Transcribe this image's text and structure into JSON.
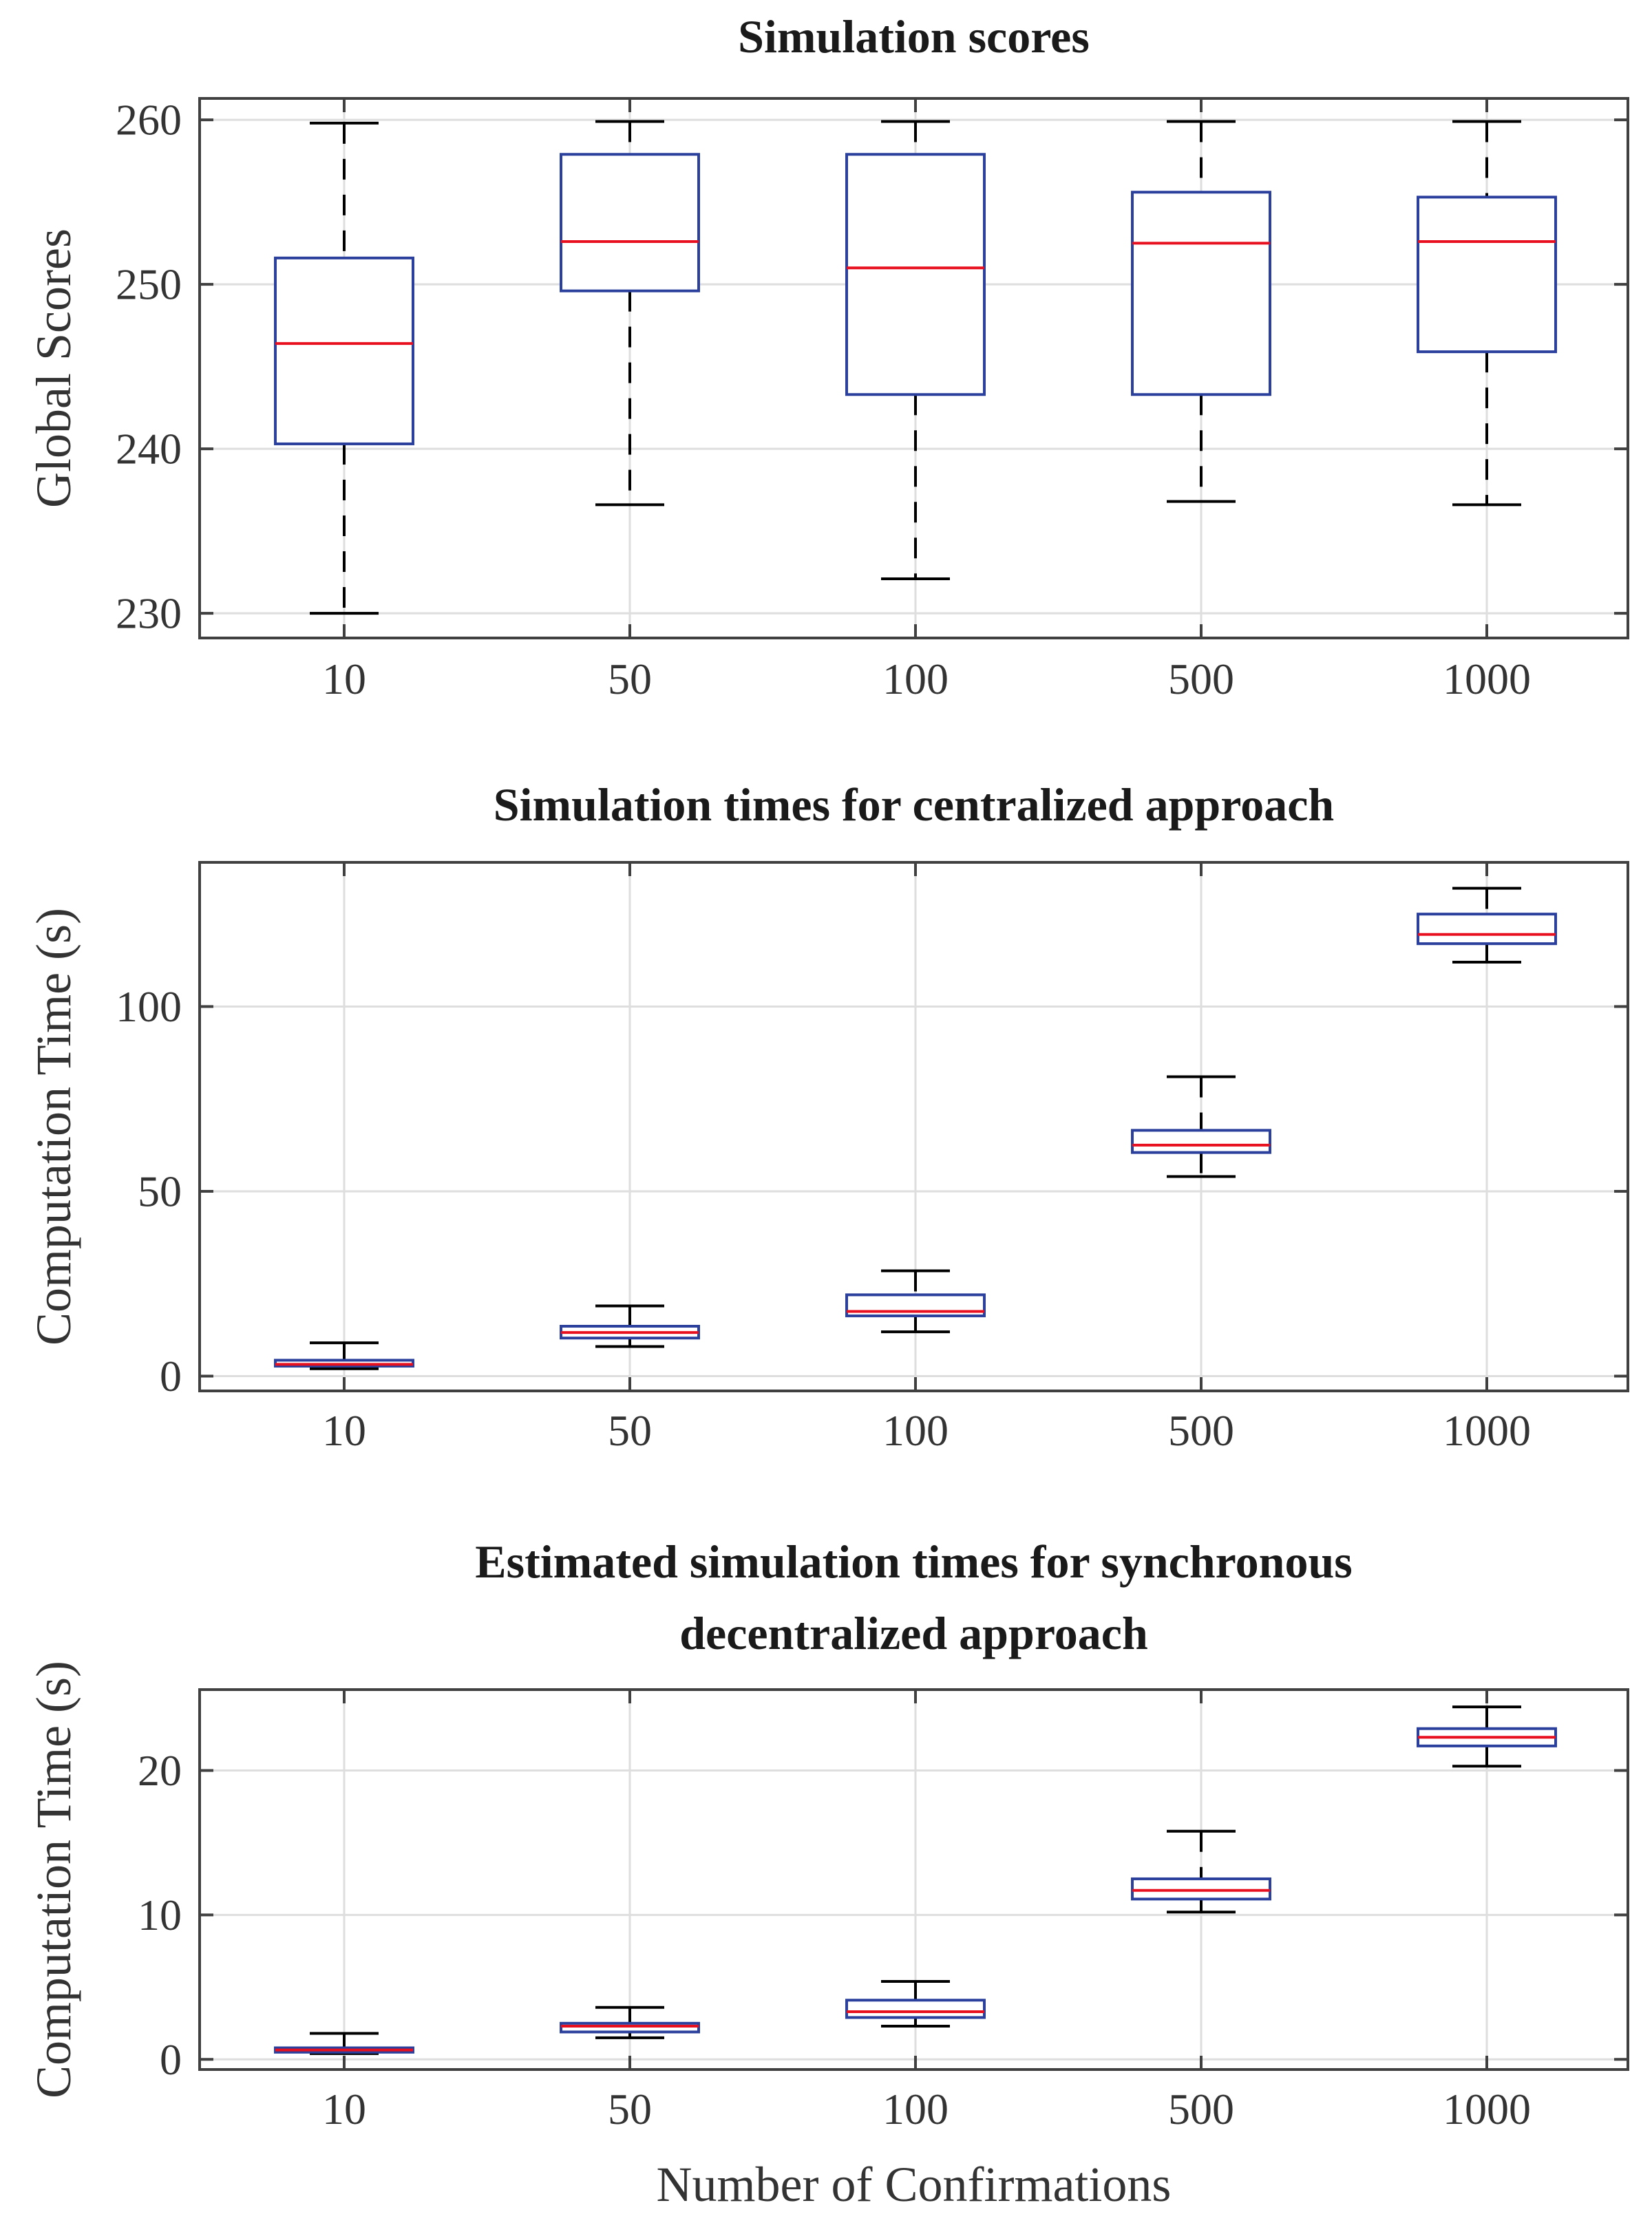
{
  "chart_data": [
    {
      "type": "boxplot",
      "title": [
        "Simulation scores"
      ],
      "xlabel": "",
      "ylabel": "Global Scores",
      "categories": [
        "10",
        "50",
        "100",
        "500",
        "1000"
      ],
      "ylim": [
        228.5,
        261.3
      ],
      "yticks": [
        230,
        240,
        250,
        260
      ],
      "grid": true,
      "boxes": [
        {
          "min": 230,
          "q1": 240.3,
          "median": 246.4,
          "q3": 251.6,
          "max": 259.8
        },
        {
          "min": 236.6,
          "q1": 249.6,
          "median": 252.6,
          "q3": 257.9,
          "max": 259.9
        },
        {
          "min": 232.1,
          "q1": 243.3,
          "median": 251.0,
          "q3": 257.9,
          "max": 259.9
        },
        {
          "min": 236.8,
          "q1": 243.3,
          "median": 252.5,
          "q3": 255.6,
          "max": 259.9
        },
        {
          "min": 236.6,
          "q1": 245.9,
          "median": 252.6,
          "q3": 255.3,
          "max": 259.9
        }
      ]
    },
    {
      "type": "boxplot",
      "title": [
        "Simulation times for centralized approach"
      ],
      "xlabel": "",
      "ylabel": "Computation Time (s)",
      "categories": [
        "10",
        "50",
        "100",
        "500",
        "1000"
      ],
      "ylim": [
        -4,
        139
      ],
      "yticks": [
        0,
        50,
        100
      ],
      "grid": true,
      "boxes": [
        {
          "min": 2,
          "q1": 2.7,
          "median": 3.2,
          "q3": 4.3,
          "max": 9
        },
        {
          "min": 8,
          "q1": 10.3,
          "median": 11.8,
          "q3": 13.5,
          "max": 19
        },
        {
          "min": 12,
          "q1": 16.3,
          "median": 17.5,
          "q3": 22,
          "max": 28.5
        },
        {
          "min": 54,
          "q1": 60.5,
          "median": 62.5,
          "q3": 66.5,
          "max": 81
        },
        {
          "min": 112,
          "q1": 117,
          "median": 119.5,
          "q3": 125,
          "max": 132
        }
      ]
    },
    {
      "type": "boxplot",
      "title": [
        "Estimated simulation times for synchronous",
        "decentralized approach"
      ],
      "xlabel": "Number of Confirmations",
      "ylabel": "Computation Time (s)",
      "categories": [
        "10",
        "50",
        "100",
        "500",
        "1000"
      ],
      "ylim": [
        -0.7,
        25.6
      ],
      "yticks": [
        0,
        10,
        20
      ],
      "grid": true,
      "boxes": [
        {
          "min": 0.4,
          "q1": 0.5,
          "median": 0.65,
          "q3": 0.8,
          "max": 1.8
        },
        {
          "min": 1.5,
          "q1": 1.9,
          "median": 2.3,
          "q3": 2.5,
          "max": 3.6
        },
        {
          "min": 2.3,
          "q1": 2.9,
          "median": 3.3,
          "q3": 4.1,
          "max": 5.4
        },
        {
          "min": 10.2,
          "q1": 11.1,
          "median": 11.7,
          "q3": 12.5,
          "max": 15.8
        },
        {
          "min": 20.3,
          "q1": 21.7,
          "median": 22.3,
          "q3": 22.9,
          "max": 24.4
        }
      ]
    }
  ],
  "colors": {
    "box": "#2b3f9c",
    "median": "#e8101e",
    "whisker": "#000000",
    "axes": "#404040",
    "grid": "#dedede",
    "text": "#333333"
  }
}
